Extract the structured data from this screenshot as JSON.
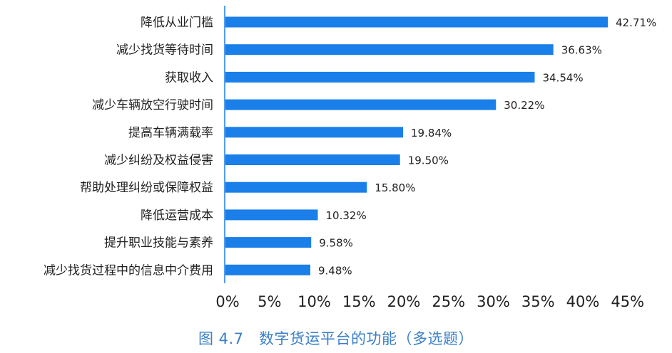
{
  "chart_data": {
    "type": "bar",
    "orientation": "horizontal",
    "categories": [
      "降低从业门槛",
      "减少找货等待时间",
      "获取收入",
      "减少车辆放空行驶时间",
      "提高车辆满载率",
      "减少纠纷及权益侵害",
      "帮助处理纠纷或保障权益",
      "降低运营成本",
      "提升职业技能与素养",
      "减少找货过程中的信息中介费用"
    ],
    "values": [
      42.71,
      36.63,
      34.54,
      30.22,
      19.84,
      19.5,
      15.8,
      10.32,
      9.58,
      9.48
    ],
    "value_labels": [
      "42.71%",
      "36.63%",
      "34.54%",
      "30.22%",
      "19.84%",
      "19.50%",
      "15.80%",
      "10.32%",
      "9.58%",
      "9.48%"
    ],
    "xlim": [
      0,
      45
    ],
    "xticks": [
      0,
      5,
      10,
      15,
      20,
      25,
      30,
      35,
      40,
      45
    ],
    "xtick_labels": [
      "0%",
      "5%",
      "10%",
      "15%",
      "20%",
      "25%",
      "30%",
      "35%",
      "40%",
      "45%"
    ],
    "bar_color": "#1a7fe8",
    "axis_color": "#1a7fe8",
    "grid": false,
    "legend": "none"
  },
  "caption": "图 4.7　数字货运平台的功能（多选题）"
}
